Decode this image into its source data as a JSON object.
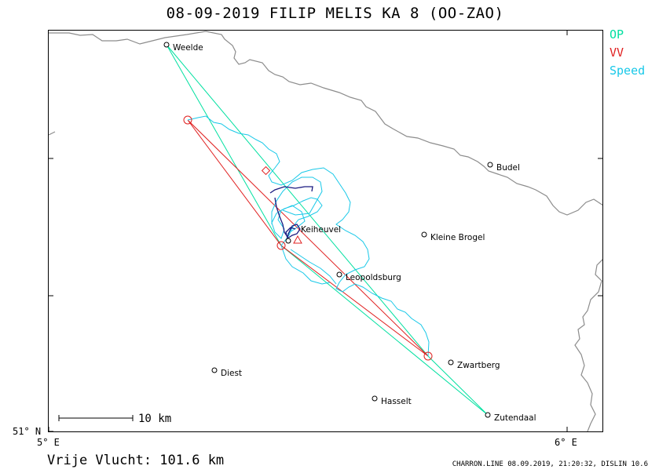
{
  "title": "08-09-2019   FILIP MELIS   KA 8 (OO-ZAO)",
  "legend": {
    "op": {
      "label": "OP",
      "color": "#00e0a0"
    },
    "vv": {
      "label": "VV",
      "color": "#e02020"
    },
    "speed": {
      "label": "Speed",
      "color": "#18c8e8"
    }
  },
  "axes": {
    "lat_label": "51° N",
    "lon_left_label": "5° E",
    "lon_right_label": "6° E"
  },
  "scale_bar": {
    "label": "10 km"
  },
  "places": [
    {
      "name": "Weelde",
      "icon": "circle-marker"
    },
    {
      "name": "Budel",
      "icon": "circle-marker"
    },
    {
      "name": "Keiheuvel",
      "icon": "circle-marker"
    },
    {
      "name": "Kleine Brogel",
      "icon": "circle-marker"
    },
    {
      "name": "Leopoldsburg",
      "icon": "circle-marker"
    },
    {
      "name": "Zwartberg",
      "icon": "circle-marker"
    },
    {
      "name": "Diest",
      "icon": "circle-marker"
    },
    {
      "name": "Hasselt",
      "icon": "circle-marker"
    },
    {
      "name": "Zutendaal",
      "icon": "circle-marker"
    }
  ],
  "footer": {
    "distance": "Vrije Vlucht:  101.6 km",
    "credits": "CHARRON.LINE 08.09.2019, 21:20:32, DISLIN 10.6"
  },
  "colors": {
    "border": "#8c8c8c",
    "track": "#18c8e8",
    "task_op": "#00e0a0",
    "task_vv": "#e02020",
    "climb": "#1a1a80"
  }
}
